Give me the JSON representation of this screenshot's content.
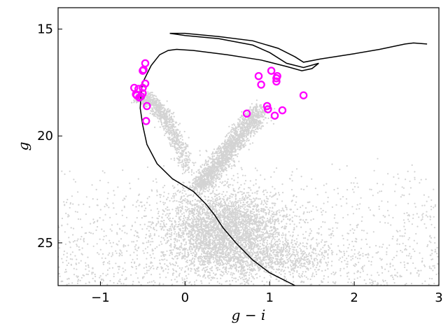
{
  "chart_data": {
    "type": "scatter",
    "xlabel": "g − i",
    "ylabel": "g",
    "xlim": [
      -1.5,
      3.0
    ],
    "ylim": [
      27.0,
      14.0
    ],
    "y_inverted": true,
    "grid": false,
    "xticks": [
      -1,
      0,
      1,
      2,
      3
    ],
    "xtick_labels": [
      "−1",
      "0",
      "1",
      "2",
      "3"
    ],
    "yticks": [
      15,
      20,
      25
    ],
    "ytick_labels": [
      "15",
      "20",
      "25"
    ],
    "colors": {
      "field_points": "#d3d3d3",
      "highlight_markers": "#ff00ff",
      "isochrone": "#000000",
      "axes": "#000000"
    },
    "background_population": {
      "name": "",
      "description_of_distribution": [
        {
          "component": "main sequence and turnoff",
          "center": [
            0.45,
            24.0
          ]
        },
        {
          "component": "red giant branch",
          "path": [
            [
              0.2,
              22.2
            ],
            [
              0.5,
              21.5
            ],
            [
              0.7,
              20.6
            ],
            [
              0.8,
              19.5
            ],
            [
              0.85,
              18.8
            ]
          ]
        },
        {
          "component": "blue horizontal branch",
          "path": [
            [
              -0.55,
              17.5
            ],
            [
              -0.5,
              19.5
            ],
            [
              -0.3,
              20.8
            ],
            [
              0.0,
              21.5
            ]
          ]
        },
        {
          "component": "field contamination",
          "x_range": [
            -1.5,
            3.0
          ],
          "y_range": [
            21.0,
            27.0
          ]
        }
      ]
    },
    "highlighted_stars": [
      {
        "x": -0.47,
        "y": 16.6
      },
      {
        "x": -0.49,
        "y": 16.9
      },
      {
        "x": -0.5,
        "y": 16.95
      },
      {
        "x": -0.6,
        "y": 17.75
      },
      {
        "x": -0.55,
        "y": 17.8
      },
      {
        "x": -0.5,
        "y": 17.75
      },
      {
        "x": -0.47,
        "y": 17.55
      },
      {
        "x": -0.57,
        "y": 18.1
      },
      {
        "x": -0.54,
        "y": 18.2
      },
      {
        "x": -0.5,
        "y": 18.0
      },
      {
        "x": -0.45,
        "y": 18.6
      },
      {
        "x": -0.46,
        "y": 19.3
      },
      {
        "x": -0.52,
        "y": 18.15
      },
      {
        "x": -0.58,
        "y": 18.05
      },
      {
        "x": 0.87,
        "y": 17.2
      },
      {
        "x": 0.9,
        "y": 17.6
      },
      {
        "x": 1.02,
        "y": 16.95
      },
      {
        "x": 1.08,
        "y": 17.3
      },
      {
        "x": 1.09,
        "y": 17.2
      },
      {
        "x": 1.08,
        "y": 17.45
      },
      {
        "x": 1.4,
        "y": 18.1
      },
      {
        "x": 0.97,
        "y": 18.6
      },
      {
        "x": 0.98,
        "y": 18.75
      },
      {
        "x": 1.15,
        "y": 18.8
      },
      {
        "x": 1.06,
        "y": 19.05
      },
      {
        "x": 0.73,
        "y": 18.95
      }
    ],
    "isochrone": [
      [
        1.3,
        27.0
      ],
      [
        1.0,
        26.4
      ],
      [
        0.8,
        25.8
      ],
      [
        0.6,
        25.0
      ],
      [
        0.45,
        24.3
      ],
      [
        0.35,
        23.7
      ],
      [
        0.25,
        23.2
      ],
      [
        0.1,
        22.6
      ],
      [
        -0.15,
        22.0
      ],
      [
        -0.33,
        21.3
      ],
      [
        -0.45,
        20.4
      ],
      [
        -0.5,
        19.5
      ],
      [
        -0.53,
        18.7
      ],
      [
        -0.52,
        18.0
      ],
      [
        -0.5,
        17.5
      ],
      [
        -0.4,
        16.7
      ],
      [
        -0.3,
        16.2
      ],
      [
        -0.2,
        16.0
      ],
      [
        -0.1,
        15.95
      ],
      [
        0.1,
        16.0
      ],
      [
        0.5,
        16.2
      ],
      [
        0.9,
        16.45
      ],
      [
        1.2,
        16.75
      ],
      [
        1.38,
        16.95
      ],
      [
        1.5,
        16.85
      ],
      [
        1.58,
        16.6
      ],
      [
        1.4,
        16.8
      ],
      [
        1.2,
        16.6
      ],
      [
        1.0,
        16.1
      ],
      [
        0.8,
        15.75
      ],
      [
        0.4,
        15.45
      ],
      [
        0.0,
        15.3
      ],
      [
        -0.18,
        15.2
      ],
      [
        0.0,
        15.2
      ],
      [
        0.4,
        15.35
      ],
      [
        0.8,
        15.55
      ],
      [
        1.1,
        15.9
      ],
      [
        1.3,
        16.3
      ],
      [
        1.4,
        16.55
      ],
      [
        1.6,
        16.4
      ],
      [
        2.0,
        16.15
      ],
      [
        2.3,
        15.95
      ],
      [
        2.6,
        15.7
      ],
      [
        2.7,
        15.65
      ],
      [
        2.86,
        15.7
      ]
    ]
  }
}
